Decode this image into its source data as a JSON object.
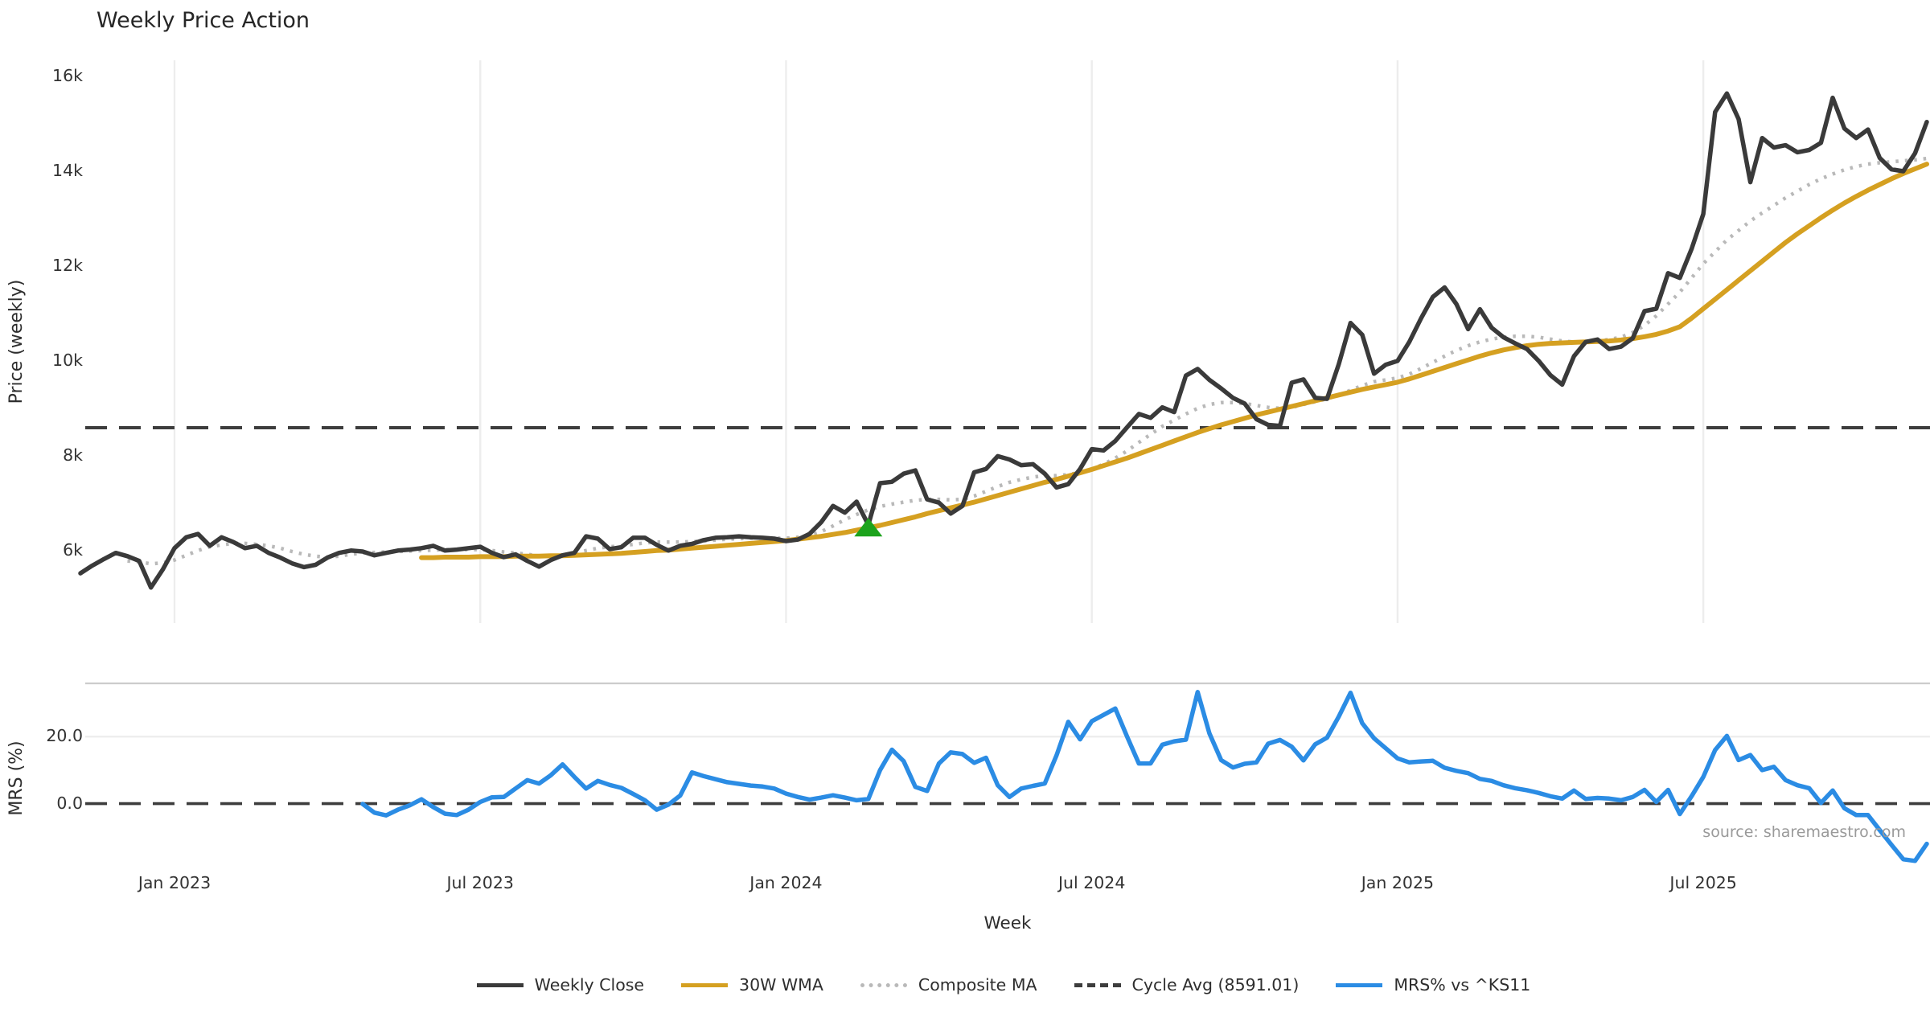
{
  "title": "Weekly Price Action",
  "xlabel": "Week",
  "source_note": "source: sharemaestro.com",
  "price_panel": {
    "ylabel": "Price (weekly)",
    "yticks": [
      {
        "value": 16000,
        "label": "16k"
      },
      {
        "value": 14000,
        "label": "14k"
      },
      {
        "value": 12000,
        "label": "12k"
      },
      {
        "value": 10000,
        "label": "10k"
      },
      {
        "value": 8000,
        "label": "8k"
      },
      {
        "value": 6000,
        "label": "6k"
      }
    ]
  },
  "mrs_panel": {
    "ylabel": "MRS (%)",
    "yticks": [
      {
        "value": 20,
        "label": "20.0"
      },
      {
        "value": 0,
        "label": "0.0"
      }
    ]
  },
  "legend": {
    "items": [
      {
        "label": "Weekly Close",
        "color": "#3a3a3a",
        "style": "solid"
      },
      {
        "label": "30W WMA",
        "color": "#d5a021",
        "style": "solid"
      },
      {
        "label": "Composite MA",
        "color": "#b9b9b9",
        "style": "dotted"
      },
      {
        "label": "Cycle Avg (8591.01)",
        "color": "#3d3d3d",
        "style": "dashed"
      },
      {
        "label": "MRS% vs ^KS11",
        "color": "#2b8ce4",
        "style": "solid"
      }
    ]
  },
  "colors": {
    "weekly_close": "#3a3a3a",
    "wma_30w": "#d5a021",
    "composite_ma": "#b9b9b9",
    "cycle_avg": "#3d3d3d",
    "mrs": "#2b8ce4",
    "marker_green": "#1ca31c",
    "gridline": "#ededed",
    "panel_border": "#cccccc"
  },
  "chart_data": {
    "type": "line",
    "x": {
      "n_points": 158,
      "tick_positions": [
        8,
        34,
        60,
        86,
        112,
        138
      ],
      "tick_labels": [
        "Jan 2023",
        "Jul 2023",
        "Jan 2024",
        "Jul 2024",
        "Jan 2025",
        "Jul 2025"
      ]
    },
    "price": {
      "ylim": [
        4470,
        16340
      ],
      "grid": "vertical-only",
      "cycle_avg_value": 8591.01,
      "buy_marker": {
        "type": "triangle-up",
        "index": 67,
        "value": 6450
      },
      "series": [
        {
          "name": "Weekly Close",
          "style": "solid",
          "values": [
            5520,
            5680,
            5820,
            5950,
            5880,
            5780,
            5220,
            5600,
            6050,
            6280,
            6350,
            6100,
            6280,
            6180,
            6050,
            6100,
            5950,
            5850,
            5730,
            5650,
            5700,
            5850,
            5950,
            6000,
            5980,
            5900,
            5950,
            6000,
            6020,
            6050,
            6100,
            6000,
            6020,
            6050,
            6080,
            5950,
            5860,
            5920,
            5780,
            5660,
            5800,
            5900,
            5950,
            6300,
            6250,
            6030,
            6070,
            6270,
            6270,
            6120,
            6000,
            6100,
            6140,
            6220,
            6270,
            6280,
            6300,
            6280,
            6270,
            6250,
            6200,
            6230,
            6350,
            6600,
            6940,
            6800,
            7030,
            6540,
            7420,
            7450,
            7620,
            7690,
            7080,
            7010,
            6780,
            6940,
            7650,
            7720,
            7990,
            7920,
            7800,
            7820,
            7620,
            7330,
            7400,
            7720,
            8140,
            8110,
            8310,
            8600,
            8880,
            8800,
            9020,
            8920,
            9690,
            9830,
            9600,
            9420,
            9220,
            9100,
            8770,
            8650,
            8630,
            9540,
            9610,
            9220,
            9200,
            9930,
            10800,
            10550,
            9730,
            9920,
            10000,
            10400,
            10900,
            11350,
            11550,
            11200,
            10670,
            11090,
            10700,
            10500,
            10370,
            10250,
            10000,
            9700,
            9500,
            10100,
            10400,
            10450,
            10250,
            10300,
            10480,
            11050,
            11100,
            11850,
            11750,
            12360,
            13100,
            15250,
            15640,
            15100,
            13770,
            14700,
            14500,
            14550,
            14400,
            14450,
            14600,
            15550,
            14900,
            14700,
            14880,
            14280,
            14040,
            14000,
            14380,
            15040
          ]
        },
        {
          "name": "30W WMA",
          "style": "solid",
          "values": [
            null,
            null,
            null,
            null,
            null,
            null,
            null,
            null,
            null,
            null,
            null,
            null,
            null,
            null,
            null,
            null,
            null,
            null,
            null,
            null,
            null,
            null,
            null,
            null,
            null,
            null,
            null,
            null,
            null,
            5850,
            5850,
            5860,
            5860,
            5860,
            5870,
            5870,
            5870,
            5880,
            5880,
            5880,
            5890,
            5890,
            5900,
            5910,
            5920,
            5930,
            5940,
            5960,
            5980,
            6000,
            6010,
            6030,
            6050,
            6070,
            6090,
            6110,
            6130,
            6150,
            6170,
            6190,
            6210,
            6240,
            6270,
            6300,
            6340,
            6380,
            6430,
            6480,
            6530,
            6590,
            6650,
            6710,
            6780,
            6840,
            6900,
            6960,
            7020,
            7090,
            7160,
            7230,
            7300,
            7370,
            7440,
            7500,
            7570,
            7640,
            7710,
            7790,
            7870,
            7950,
            8040,
            8130,
            8220,
            8310,
            8400,
            8490,
            8570,
            8650,
            8720,
            8790,
            8860,
            8920,
            8980,
            9040,
            9100,
            9160,
            9220,
            9280,
            9340,
            9400,
            9450,
            9500,
            9550,
            9620,
            9700,
            9780,
            9860,
            9940,
            10020,
            10100,
            10170,
            10230,
            10280,
            10320,
            10350,
            10370,
            10380,
            10390,
            10400,
            10410,
            10420,
            10440,
            10470,
            10510,
            10560,
            10630,
            10720,
            10900,
            11100,
            11300,
            11500,
            11700,
            11900,
            12100,
            12300,
            12500,
            12680,
            12850,
            13020,
            13180,
            13330,
            13470,
            13600,
            13720,
            13840,
            13950,
            14050,
            14150
          ]
        },
        {
          "name": "Composite MA",
          "style": "dotted",
          "values": [
            null,
            null,
            null,
            null,
            5780,
            5760,
            5720,
            5740,
            5800,
            5900,
            6000,
            6080,
            6120,
            6150,
            6150,
            6130,
            6100,
            6050,
            5980,
            5920,
            5880,
            5860,
            5880,
            5920,
            5950,
            5960,
            5970,
            5980,
            5990,
            6000,
            6010,
            6020,
            6020,
            6020,
            6020,
            6000,
            5970,
            5950,
            5920,
            5890,
            5880,
            5900,
            5940,
            6000,
            6050,
            6080,
            6100,
            6130,
            6160,
            6180,
            6180,
            6180,
            6190,
            6200,
            6220,
            6240,
            6250,
            6260,
            6260,
            6260,
            6260,
            6280,
            6320,
            6400,
            6520,
            6650,
            6760,
            6860,
            6930,
            6980,
            7020,
            7060,
            7080,
            7080,
            7070,
            7080,
            7150,
            7250,
            7350,
            7440,
            7500,
            7550,
            7580,
            7580,
            7600,
            7650,
            7720,
            7820,
            7950,
            8100,
            8280,
            8450,
            8620,
            8750,
            8880,
            9000,
            9080,
            9120,
            9120,
            9100,
            9060,
            9020,
            9000,
            9020,
            9080,
            9140,
            9200,
            9280,
            9380,
            9480,
            9560,
            9600,
            9640,
            9720,
            9840,
            9970,
            10100,
            10220,
            10320,
            10400,
            10460,
            10500,
            10520,
            10520,
            10500,
            10460,
            10420,
            10400,
            10400,
            10420,
            10450,
            10500,
            10600,
            10750,
            10950,
            11200,
            11450,
            11750,
            12050,
            12300,
            12550,
            12750,
            12950,
            13120,
            13280,
            13440,
            13580,
            13720,
            13840,
            13940,
            14030,
            14100,
            14150,
            14180,
            14200,
            14220,
            14240,
            14270
          ]
        }
      ]
    },
    "mrs": {
      "ylim": [
        -20.5,
        35.9
      ],
      "zero_line": 0,
      "series": [
        {
          "name": "MRS% vs ^KS11",
          "style": "solid",
          "values": [
            null,
            null,
            null,
            null,
            null,
            null,
            null,
            null,
            null,
            null,
            null,
            null,
            null,
            null,
            null,
            null,
            null,
            null,
            null,
            null,
            null,
            null,
            null,
            null,
            -0.1,
            -2.7,
            -3.5,
            -1.8,
            -0.5,
            1.3,
            -1.0,
            -3.0,
            -3.4,
            -1.8,
            0.5,
            1.9,
            2.0,
            4.5,
            7.0,
            6.0,
            8.5,
            11.7,
            8.0,
            4.5,
            6.8,
            5.6,
            4.7,
            2.9,
            1.0,
            -1.8,
            -0.3,
            2.4,
            9.3,
            8.2,
            7.3,
            6.4,
            5.9,
            5.4,
            5.1,
            4.5,
            3.0,
            2.0,
            1.2,
            1.8,
            2.5,
            1.8,
            1.0,
            1.4,
            10.0,
            16.1,
            12.7,
            5.0,
            3.8,
            12.0,
            15.3,
            14.8,
            12.2,
            13.7,
            5.5,
            2.0,
            4.5,
            5.3,
            6.0,
            14.4,
            24.4,
            19.2,
            24.6,
            26.5,
            28.4,
            20.0,
            12.0,
            12.0,
            17.6,
            18.6,
            19.1,
            33.3,
            21.0,
            13.0,
            10.8,
            11.9,
            12.3,
            17.9,
            19.0,
            17.0,
            12.9,
            17.7,
            19.7,
            26.0,
            33.1,
            24.0,
            19.5,
            16.5,
            13.5,
            12.3,
            12.6,
            12.8,
            10.7,
            9.8,
            9.1,
            7.4,
            6.8,
            5.5,
            4.6,
            4.0,
            3.2,
            2.2,
            1.5,
            3.9,
            1.4,
            1.7,
            1.5,
            1.0,
            2.0,
            4.1,
            0.5,
            4.1,
            -3.1,
            2.2,
            8.0,
            16.0,
            20.2,
            13.0,
            14.5,
            10.0,
            11.0,
            7.0,
            5.5,
            4.6,
            0.2,
            3.9,
            -1.4,
            -3.4,
            -3.4,
            -7.9,
            -12.3,
            -16.6,
            -17.1,
            -12.0
          ]
        }
      ]
    }
  }
}
